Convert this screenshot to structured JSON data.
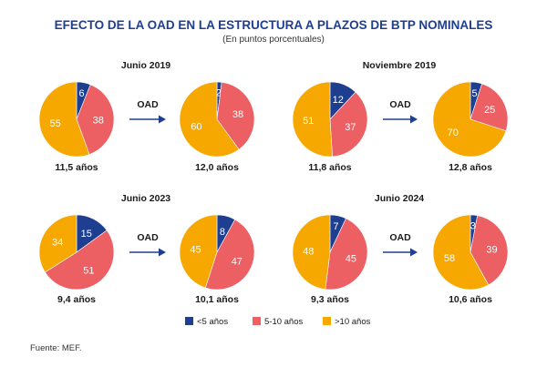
{
  "title": "EFECTO DE LA OAD EN LA ESTRUCTURA A PLAZOS DE BTP NOMINALES",
  "subtitle": "(En puntos porcentuales)",
  "source": "Fuente: MEF.",
  "arrow_label": "OAD",
  "colors": {
    "lt5": "#1e3f8f",
    "5to10": "#ec5f63",
    "gt10": "#f7a800",
    "title": "#1e3f8f",
    "arrow": "#1e3f8f"
  },
  "legend": [
    {
      "label": "<5 años",
      "color_key": "lt5"
    },
    {
      "label": "5-10 años",
      "color_key": "5to10"
    },
    {
      "label": ">10 años",
      "color_key": "gt10"
    }
  ],
  "chart_data": [
    {
      "type": "pie",
      "group": "Junio 2019",
      "phase": "before",
      "slices": [
        6,
        38,
        55
      ],
      "caption": "11,5 años"
    },
    {
      "type": "pie",
      "group": "Junio 2019",
      "phase": "after",
      "slices": [
        2,
        38,
        60
      ],
      "caption": "12,0 años"
    },
    {
      "type": "pie",
      "group": "Noviembre 2019",
      "phase": "before",
      "slices": [
        12,
        37,
        51
      ],
      "caption": "11,8 años"
    },
    {
      "type": "pie",
      "group": "Noviembre 2019",
      "phase": "after",
      "slices": [
        5,
        25,
        70
      ],
      "caption": "12,8 años"
    },
    {
      "type": "pie",
      "group": "Junio 2023",
      "phase": "before",
      "slices": [
        15,
        51,
        34
      ],
      "caption": "9,4 años"
    },
    {
      "type": "pie",
      "group": "Junio 2023",
      "phase": "after",
      "slices": [
        8,
        47,
        45
      ],
      "caption": "10,1 años"
    },
    {
      "type": "pie",
      "group": "Junio 2024",
      "phase": "before",
      "slices": [
        7,
        45,
        48
      ],
      "caption": "9,3 años"
    },
    {
      "type": "pie",
      "group": "Junio 2024",
      "phase": "after",
      "slices": [
        3,
        39,
        58
      ],
      "caption": "10,6 años"
    }
  ]
}
